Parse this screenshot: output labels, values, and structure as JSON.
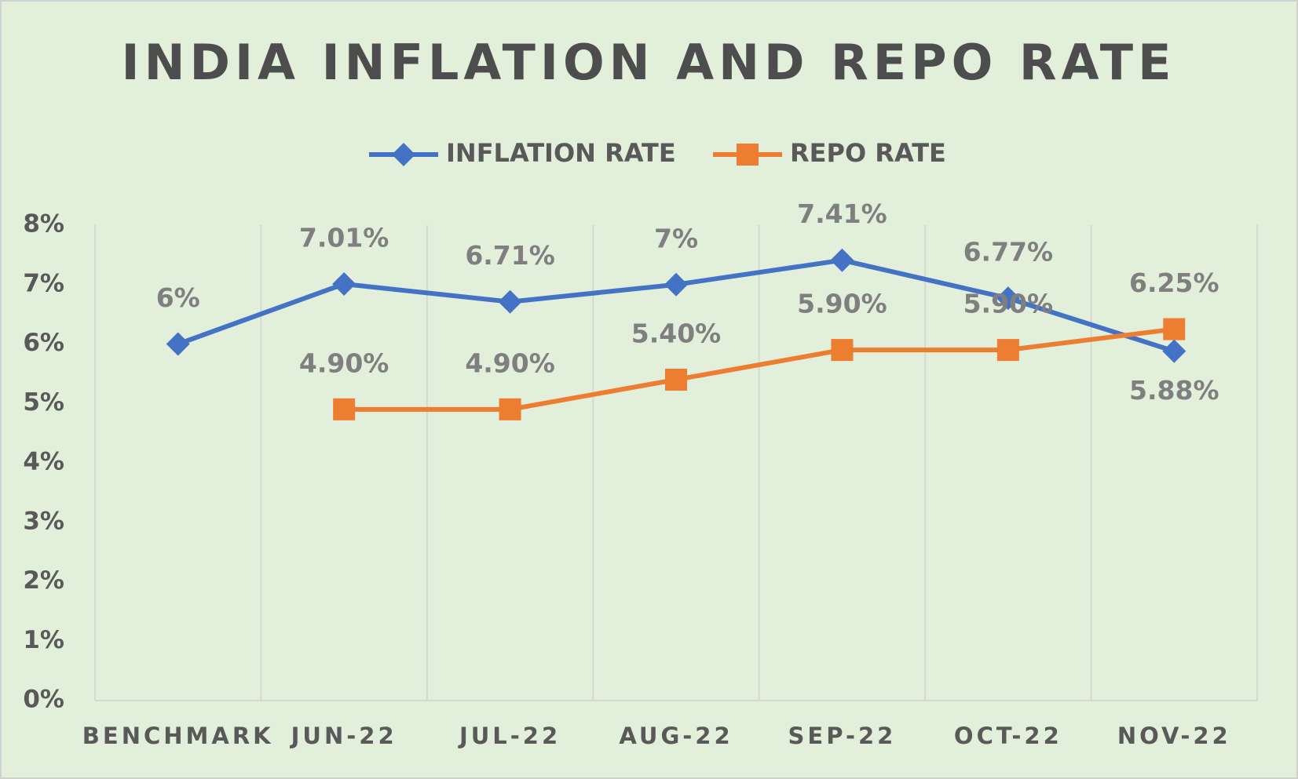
{
  "chart_data": {
    "type": "line",
    "title": "INDIA INFLATION AND REPO RATE",
    "categories": [
      "BENCHMARK",
      "JUN-22",
      "JUL-22",
      "AUG-22",
      "SEP-22",
      "OCT-22",
      "NOV-22"
    ],
    "series": [
      {
        "name": "INFLATION RATE",
        "color": "#4472c4",
        "marker": "diamond",
        "values": [
          6,
          7.01,
          6.71,
          7,
          7.41,
          6.77,
          5.88
        ],
        "value_labels": [
          "6%",
          "7.01%",
          "6.71%",
          "7%",
          "7.41%",
          "6.77%",
          "5.88%"
        ]
      },
      {
        "name": "REPO RATE",
        "color": "#ed7d31",
        "marker": "square",
        "values": [
          null,
          4.9,
          4.9,
          5.4,
          5.9,
          5.9,
          6.25
        ],
        "value_labels": [
          null,
          "4.90%",
          "4.90%",
          "5.40%",
          "5.90%",
          "5.90%",
          "6.25%"
        ]
      }
    ],
    "ylim": [
      0,
      8
    ],
    "yticks": [
      {
        "value": 0,
        "label": "0%"
      },
      {
        "value": 1,
        "label": "1%"
      },
      {
        "value": 2,
        "label": "2%"
      },
      {
        "value": 3,
        "label": "3%"
      },
      {
        "value": 4,
        "label": "4%"
      },
      {
        "value": 5,
        "label": "5%"
      },
      {
        "value": 6,
        "label": "6%"
      },
      {
        "value": 7,
        "label": "7%"
      },
      {
        "value": 8,
        "label": "8%"
      }
    ],
    "legend": "top"
  }
}
